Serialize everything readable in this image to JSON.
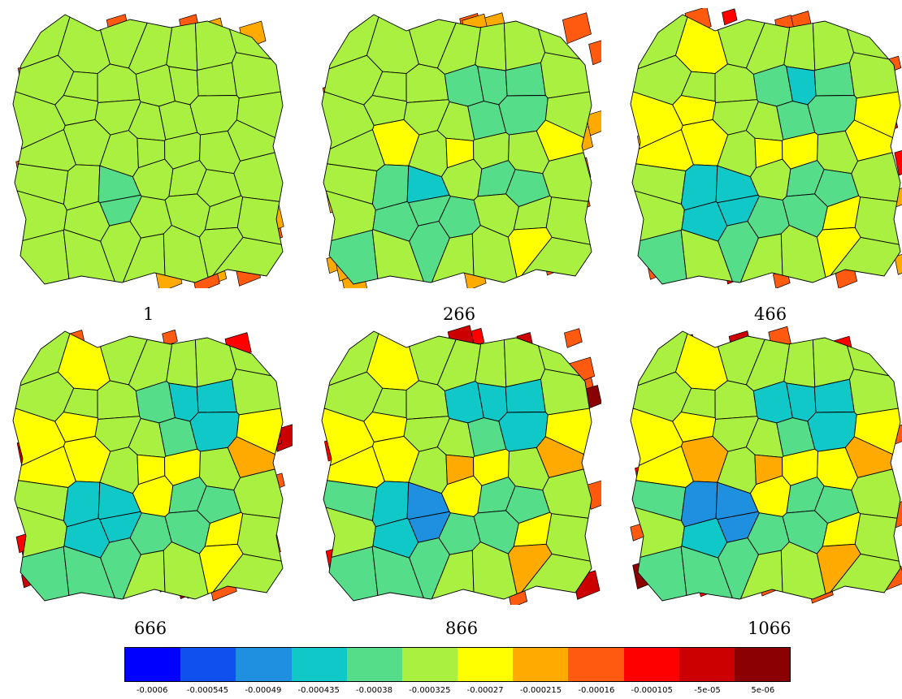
{
  "panels": [
    {
      "label": "1",
      "intensity": 0.05
    },
    {
      "label": "266",
      "intensity": 0.45
    },
    {
      "label": "466",
      "intensity": 0.65
    },
    {
      "label": "666",
      "intensity": 0.8
    },
    {
      "label": "866",
      "intensity": 0.92
    },
    {
      "label": "1066",
      "intensity": 1.0
    }
  ],
  "colorbar": {
    "colors": [
      "#0000ff",
      "#1050ee",
      "#1f8fe0",
      "#10c8c8",
      "#55dd8a",
      "#aaf040",
      "#ffff00",
      "#ffaa00",
      "#ff5a10",
      "#ff0000",
      "#cc0000",
      "#8b0000"
    ],
    "ticks": [
      "-0.0006",
      "-0.000545",
      "-0.00049",
      "-0.000435",
      "-0.00038",
      "-0.000325",
      "-0.00027",
      "-0.000215",
      "-0.00016",
      "-0.000105",
      "-5e-05",
      "5e-06"
    ]
  }
}
